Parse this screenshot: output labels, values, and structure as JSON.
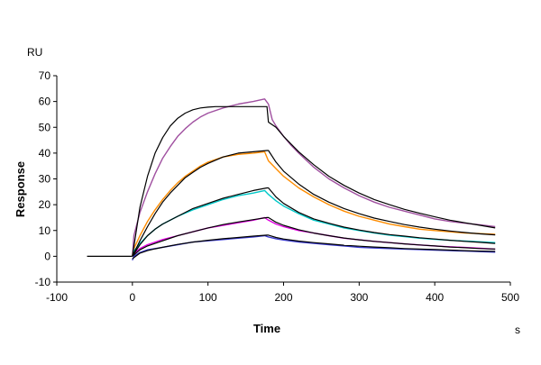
{
  "chart_data": {
    "type": "line",
    "title": "",
    "xlabel": "Time",
    "ylabel": "Response",
    "x_unit": "s",
    "y_unit": "RU",
    "xlim": [
      -100,
      500
    ],
    "ylim": [
      -10,
      70
    ],
    "x_ticks": [
      -100,
      0,
      100,
      200,
      300,
      400,
      500
    ],
    "y_ticks": [
      -10,
      0,
      10,
      20,
      30,
      40,
      50,
      60,
      70
    ],
    "grid": false,
    "legend": "none",
    "baseline": {
      "x": [
        -60,
        0
      ],
      "y": [
        0,
        0
      ],
      "color": "#000000"
    },
    "series": [
      {
        "color": "#a050a0",
        "x": [
          0,
          2,
          10,
          20,
          30,
          40,
          50,
          60,
          70,
          80,
          90,
          100,
          120,
          140,
          160,
          175,
          180,
          185,
          190,
          200,
          210,
          220,
          240,
          260,
          280,
          300,
          320,
          340,
          360,
          380,
          400,
          420,
          440,
          460,
          480
        ],
        "y": [
          0,
          8,
          17,
          25,
          32,
          38,
          42.5,
          46.5,
          49.5,
          52,
          54,
          55.5,
          57.5,
          59,
          60,
          61,
          59,
          53,
          50.5,
          46.5,
          43,
          40,
          34.5,
          30,
          26.5,
          23.5,
          21,
          19,
          17.5,
          16,
          14.5,
          13.5,
          12.8,
          12.2,
          11.5
        ]
      },
      {
        "color": "#ff8c00",
        "x": [
          0,
          2,
          10,
          20,
          30,
          40,
          50,
          60,
          70,
          80,
          90,
          100,
          120,
          140,
          160,
          175,
          180,
          190,
          200,
          220,
          240,
          260,
          280,
          300,
          320,
          340,
          360,
          380,
          400,
          420,
          440,
          460,
          480
        ],
        "y": [
          0,
          3,
          8,
          13.5,
          18,
          22,
          25.5,
          28.5,
          31,
          33,
          35,
          36.5,
          38.5,
          39.5,
          40,
          40.5,
          37,
          34,
          31,
          26.5,
          23,
          20,
          17.5,
          15.5,
          14,
          12.5,
          11.5,
          10.5,
          10,
          9.5,
          9,
          8.8,
          8.5
        ]
      },
      {
        "color": "#00c8c8",
        "x": [
          0,
          2,
          10,
          20,
          30,
          40,
          60,
          80,
          100,
          120,
          140,
          160,
          175,
          180,
          190,
          200,
          220,
          240,
          260,
          280,
          300,
          320,
          340,
          360,
          380,
          400,
          420,
          440,
          460,
          480
        ],
        "y": [
          0,
          2,
          5,
          8,
          10.5,
          12.5,
          15.5,
          18,
          20,
          22,
          23.5,
          24.5,
          25.5,
          24,
          21.5,
          19.5,
          16.5,
          14,
          12.5,
          11,
          10,
          9,
          8.2,
          7.6,
          7,
          6.6,
          6.2,
          5.9,
          5.6,
          5.3
        ]
      },
      {
        "color": "#e000e0",
        "x": [
          0,
          2,
          10,
          20,
          30,
          40,
          60,
          80,
          100,
          120,
          140,
          160,
          175,
          180,
          190,
          200,
          220,
          240,
          260,
          280,
          300,
          320,
          340,
          360,
          380,
          400,
          420,
          440,
          460,
          480
        ],
        "y": [
          0,
          1,
          3,
          4.5,
          5.5,
          6.5,
          8,
          9.5,
          11,
          12,
          13,
          14,
          15,
          14,
          12.5,
          11.5,
          10,
          9,
          8,
          7,
          6.4,
          5.8,
          5.3,
          4.8,
          4.4,
          4,
          3.7,
          3.4,
          3.1,
          2.8
        ]
      },
      {
        "color": "#3a3ad0",
        "x": [
          0,
          2,
          10,
          20,
          30,
          40,
          60,
          80,
          100,
          120,
          140,
          160,
          175,
          180,
          190,
          200,
          220,
          240,
          260,
          280,
          300,
          320,
          340,
          360,
          380,
          400,
          420,
          440,
          460,
          480
        ],
        "y": [
          -1.5,
          0,
          1.5,
          2.5,
          3,
          3.5,
          4.5,
          5.5,
          6,
          6.5,
          7,
          7.5,
          8,
          7.5,
          6.8,
          6.3,
          5.5,
          5,
          4.5,
          4,
          3.5,
          3.2,
          3,
          2.8,
          2.6,
          2.4,
          2.2,
          2,
          1.8,
          1.6
        ]
      },
      {
        "color": "#000000",
        "x": [
          0,
          10,
          20,
          30,
          40,
          50,
          60,
          70,
          80,
          90,
          100,
          110,
          120,
          130,
          140,
          150,
          160,
          170,
          178,
          180,
          185,
          190,
          200,
          210,
          220,
          240,
          260,
          280,
          300,
          320,
          340,
          360,
          380,
          400,
          420,
          440,
          460,
          480
        ],
        "y": [
          0,
          19,
          31,
          40,
          46,
          50.5,
          53.5,
          55.5,
          56.8,
          57.5,
          57.8,
          58,
          58,
          58,
          58,
          58,
          58,
          58,
          58,
          52,
          51,
          50,
          46.5,
          43.5,
          40.5,
          35.5,
          31,
          27.5,
          24.5,
          22,
          20,
          18.2,
          16.7,
          15.3,
          14,
          13,
          12,
          11
        ]
      },
      {
        "color": "#000000",
        "x": [
          0,
          10,
          20,
          30,
          40,
          50,
          60,
          70,
          80,
          90,
          100,
          120,
          140,
          160,
          178,
          180,
          190,
          200,
          220,
          240,
          260,
          280,
          300,
          320,
          340,
          360,
          380,
          400,
          420,
          440,
          460,
          480
        ],
        "y": [
          0,
          6,
          11.5,
          16.5,
          21,
          24.5,
          27.5,
          30.5,
          32.5,
          34.5,
          36,
          38.5,
          40,
          40.5,
          41,
          41,
          36.5,
          33,
          28,
          24,
          21,
          18.5,
          16.5,
          14.8,
          13.5,
          12.3,
          11.3,
          10.5,
          9.8,
          9.2,
          8.7,
          8.3
        ]
      },
      {
        "color": "#000000",
        "x": [
          0,
          10,
          20,
          30,
          40,
          60,
          80,
          100,
          120,
          140,
          160,
          178,
          180,
          190,
          200,
          220,
          240,
          260,
          280,
          300,
          320,
          340,
          360,
          380,
          400,
          420,
          440,
          460,
          480
        ],
        "y": [
          0,
          4.5,
          8,
          10.5,
          12.5,
          15.5,
          18.5,
          20.5,
          22.5,
          24,
          25.5,
          26.5,
          26.5,
          23,
          20.5,
          17,
          14.5,
          12.8,
          11.3,
          10.2,
          9.2,
          8.4,
          7.8,
          7.2,
          6.7,
          6.2,
          5.8,
          5.4,
          5
        ]
      },
      {
        "color": "#000000",
        "x": [
          0,
          10,
          20,
          30,
          40,
          60,
          80,
          100,
          120,
          140,
          160,
          178,
          180,
          190,
          200,
          220,
          240,
          260,
          280,
          300,
          320,
          340,
          360,
          380,
          400,
          420,
          440,
          460,
          480
        ],
        "y": [
          0,
          2.5,
          4,
          5,
          6,
          8,
          9.5,
          11,
          12.3,
          13.3,
          14.2,
          15,
          15,
          13.2,
          12,
          10.3,
          9,
          8,
          7.1,
          6.4,
          5.8,
          5.3,
          4.8,
          4.4,
          4,
          3.6,
          3.3,
          3,
          2.8
        ]
      },
      {
        "color": "#000000",
        "x": [
          0,
          10,
          20,
          30,
          40,
          60,
          80,
          100,
          120,
          140,
          160,
          178,
          180,
          190,
          200,
          220,
          240,
          260,
          280,
          300,
          320,
          340,
          360,
          380,
          400,
          420,
          440,
          460,
          480
        ],
        "y": [
          -1,
          1.2,
          2.2,
          2.9,
          3.5,
          4.6,
          5.5,
          6.2,
          6.8,
          7.3,
          7.8,
          8.2,
          8.2,
          7.3,
          6.7,
          5.9,
          5.3,
          4.8,
          4.3,
          3.9,
          3.6,
          3.3,
          3,
          2.8,
          2.6,
          2.4,
          2.2,
          2,
          1.9
        ]
      }
    ]
  }
}
